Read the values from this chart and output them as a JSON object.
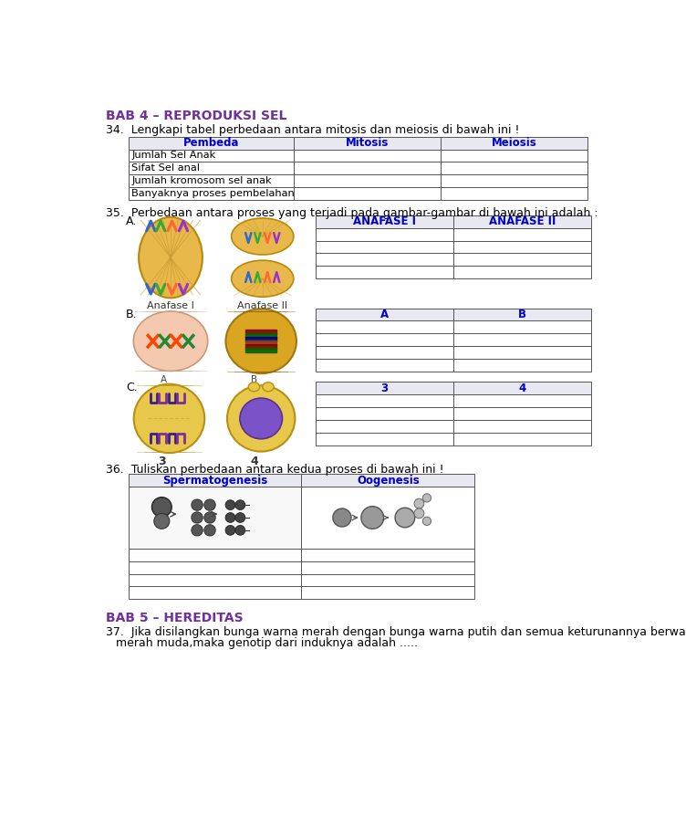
{
  "title_bab4": "BAB 4 – REPRODUKSI SEL",
  "title_bab5": "BAB 5 – HEREDITAS",
  "title_color": "#7030A0",
  "header_color": "#0000CD",
  "body_text_color": "#000000",
  "bg_color": "#FFFFFF",
  "table_border_color": "#555555",
  "q34_text": "34.  Lengkapi tabel perbedaan antara mitosis dan meiosis di bawah ini !",
  "q35_text": "35.  Perbedaan antara proses yang terjadi pada gambar-gambar di bawah ini adalah :",
  "q36_text": "36.  Tuliskan perbedaan antara kedua proses di bawah ini !",
  "q37_text": "37.  Jika disilangkan bunga warna merah dengan bunga warna putih dan semua keturunannya berwarna",
  "q37_text2": "      merah muda,maka genotip dari induknya adalah .....",
  "table34_headers": [
    "Pembeda",
    "Mitosis",
    "Meiosis"
  ],
  "table34_rows": [
    "Jumlah Sel Anak",
    "Sifat Sel anal",
    "Jumlah kromosom sel anak",
    "Banyaknya proses pembelahan"
  ],
  "anafase_headers": [
    "ANAFASE I",
    "ANAFASE II"
  ],
  "ab_headers": [
    "A",
    "B"
  ],
  "cd_headers": [
    "3",
    "4"
  ],
  "sperm_oogen_headers": [
    "Spermatogenesis",
    "Oogenesis"
  ],
  "label_A": "A.",
  "label_B": "B.",
  "label_C": "C.",
  "anafase1_label": "Anafase I",
  "anafase2_label": "Anafase II",
  "num3_label": "3",
  "num4_label": "4"
}
